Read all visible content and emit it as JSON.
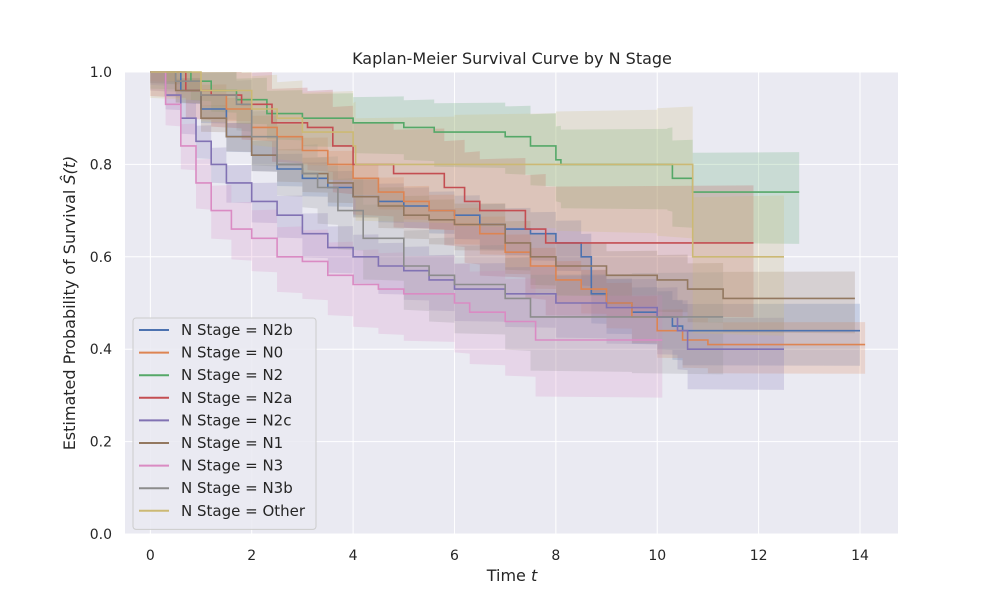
{
  "chart_data": {
    "type": "line",
    "title": "Kaplan-Meier Survival Curve by N Stage",
    "xlabel": "Time",
    "xlabel_var": "t",
    "ylabel": "Estimated Probability of Survival",
    "ylabel_var": "Ŝ(t)",
    "xlim": [
      -0.5,
      14.75
    ],
    "ylim": [
      0,
      1
    ],
    "xticks": [
      0,
      2,
      4,
      6,
      8,
      10,
      12,
      14
    ],
    "yticks": [
      0.0,
      0.2,
      0.4,
      0.6,
      0.8,
      1.0
    ],
    "xtick_labels": [
      "0",
      "2",
      "4",
      "6",
      "8",
      "10",
      "12",
      "14"
    ],
    "ytick_labels": [
      "0.0",
      "0.2",
      "0.4",
      "0.6",
      "0.8",
      "1.0"
    ],
    "grid": true,
    "legend_position": "lower-left",
    "series": [
      {
        "name": "N Stage = N2b",
        "color": "#4c72b0",
        "conf_band": 0.06,
        "points": [
          [
            0,
            1
          ],
          [
            0.3,
            1
          ],
          [
            0.6,
            0.96
          ],
          [
            1,
            0.92
          ],
          [
            1.5,
            0.86
          ],
          [
            2,
            0.82
          ],
          [
            2.5,
            0.79
          ],
          [
            3,
            0.77
          ],
          [
            3.5,
            0.75
          ],
          [
            4,
            0.73
          ],
          [
            4.5,
            0.72
          ],
          [
            5,
            0.71
          ],
          [
            5.5,
            0.7
          ],
          [
            6,
            0.69
          ],
          [
            6.5,
            0.67
          ],
          [
            7,
            0.66
          ],
          [
            7.5,
            0.65
          ],
          [
            8,
            0.63
          ],
          [
            8.5,
            0.6
          ],
          [
            8.7,
            0.52
          ],
          [
            9,
            0.5
          ],
          [
            9.5,
            0.48
          ],
          [
            10,
            0.47
          ],
          [
            10.3,
            0.45
          ],
          [
            10.5,
            0.44
          ],
          [
            14,
            0.44
          ]
        ]
      },
      {
        "name": "N Stage = N0",
        "color": "#dd8452",
        "conf_band": 0.05,
        "points": [
          [
            0,
            1
          ],
          [
            0.5,
            0.98
          ],
          [
            1,
            0.95
          ],
          [
            1.5,
            0.92
          ],
          [
            2,
            0.88
          ],
          [
            2.5,
            0.86
          ],
          [
            3,
            0.83
          ],
          [
            3.5,
            0.8
          ],
          [
            4,
            0.77
          ],
          [
            4.5,
            0.74
          ],
          [
            5,
            0.72
          ],
          [
            5.5,
            0.7
          ],
          [
            6,
            0.67
          ],
          [
            6.5,
            0.65
          ],
          [
            7,
            0.61
          ],
          [
            7.5,
            0.58
          ],
          [
            8,
            0.55
          ],
          [
            8.5,
            0.53
          ],
          [
            9,
            0.5
          ],
          [
            9.5,
            0.47
          ],
          [
            10,
            0.44
          ],
          [
            10.5,
            0.42
          ],
          [
            11,
            0.41
          ],
          [
            14.1,
            0.41
          ]
        ]
      },
      {
        "name": "N Stage = N2",
        "color": "#55a868",
        "conf_band": 0.09,
        "points": [
          [
            0,
            1
          ],
          [
            0.8,
            0.98
          ],
          [
            1.2,
            0.96
          ],
          [
            1.7,
            0.94
          ],
          [
            2.3,
            0.91
          ],
          [
            3,
            0.9
          ],
          [
            4,
            0.89
          ],
          [
            5,
            0.88
          ],
          [
            5.6,
            0.87
          ],
          [
            7,
            0.86
          ],
          [
            7.5,
            0.84
          ],
          [
            8,
            0.81
          ],
          [
            8.1,
            0.8
          ],
          [
            10.2,
            0.8
          ],
          [
            10.3,
            0.77
          ],
          [
            10.7,
            0.74
          ],
          [
            12.8,
            0.74
          ]
        ]
      },
      {
        "name": "N Stage = N2a",
        "color": "#c44e52",
        "conf_band": 0.13,
        "points": [
          [
            0,
            1
          ],
          [
            0.7,
            0.96
          ],
          [
            1.2,
            0.95
          ],
          [
            1.8,
            0.93
          ],
          [
            2.4,
            0.89
          ],
          [
            3.1,
            0.88
          ],
          [
            3.6,
            0.84
          ],
          [
            4,
            0.8
          ],
          [
            4.8,
            0.78
          ],
          [
            5.8,
            0.75
          ],
          [
            6.2,
            0.72
          ],
          [
            6.5,
            0.7
          ],
          [
            7.4,
            0.66
          ],
          [
            7.8,
            0.63
          ],
          [
            11.9,
            0.63
          ]
        ]
      },
      {
        "name": "N Stage = N2c",
        "color": "#8172b3",
        "conf_band": 0.07,
        "points": [
          [
            0,
            1
          ],
          [
            0.3,
            0.95
          ],
          [
            0.6,
            0.9
          ],
          [
            0.9,
            0.85
          ],
          [
            1.2,
            0.8
          ],
          [
            1.5,
            0.76
          ],
          [
            2,
            0.72
          ],
          [
            2.5,
            0.69
          ],
          [
            3,
            0.65
          ],
          [
            3.5,
            0.62
          ],
          [
            4,
            0.6
          ],
          [
            4.5,
            0.58
          ],
          [
            5,
            0.57
          ],
          [
            5.5,
            0.55
          ],
          [
            6,
            0.53
          ],
          [
            7,
            0.52
          ],
          [
            8,
            0.5
          ],
          [
            9,
            0.49
          ],
          [
            10,
            0.47
          ],
          [
            10.4,
            0.44
          ],
          [
            10.6,
            0.4
          ],
          [
            12.5,
            0.4
          ]
        ]
      },
      {
        "name": "N Stage = N1",
        "color": "#937860",
        "conf_band": 0.06,
        "points": [
          [
            0,
            1
          ],
          [
            0.5,
            0.96
          ],
          [
            1,
            0.9
          ],
          [
            1.5,
            0.86
          ],
          [
            2,
            0.82
          ],
          [
            2.5,
            0.8
          ],
          [
            3,
            0.78
          ],
          [
            3.5,
            0.76
          ],
          [
            4,
            0.73
          ],
          [
            4.5,
            0.71
          ],
          [
            5,
            0.69
          ],
          [
            5.5,
            0.68
          ],
          [
            6,
            0.67
          ],
          [
            7,
            0.63
          ],
          [
            7.5,
            0.6
          ],
          [
            8,
            0.58
          ],
          [
            9,
            0.56
          ],
          [
            10,
            0.55
          ],
          [
            10.6,
            0.53
          ],
          [
            11.3,
            0.51
          ],
          [
            13.9,
            0.51
          ]
        ]
      },
      {
        "name": "N Stage = N3",
        "color": "#da8bc3",
        "conf_band": 0.1,
        "points": [
          [
            0,
            1
          ],
          [
            0.3,
            0.93
          ],
          [
            0.6,
            0.84
          ],
          [
            0.9,
            0.76
          ],
          [
            1.2,
            0.7
          ],
          [
            1.6,
            0.66
          ],
          [
            2,
            0.64
          ],
          [
            2.5,
            0.6
          ],
          [
            3,
            0.59
          ],
          [
            3.5,
            0.56
          ],
          [
            4,
            0.54
          ],
          [
            4.5,
            0.53
          ],
          [
            5,
            0.52
          ],
          [
            6,
            0.5
          ],
          [
            6.3,
            0.48
          ],
          [
            7,
            0.46
          ],
          [
            7.6,
            0.42
          ],
          [
            10.1,
            0.42
          ]
        ]
      },
      {
        "name": "N Stage = N3b",
        "color": "#8c8c8c",
        "conf_band": 0.1,
        "points": [
          [
            0,
            1
          ],
          [
            0.5,
            0.98
          ],
          [
            1,
            0.95
          ],
          [
            1.7,
            0.93
          ],
          [
            2,
            0.86
          ],
          [
            2.5,
            0.8
          ],
          [
            3,
            0.78
          ],
          [
            3.3,
            0.75
          ],
          [
            3.7,
            0.7
          ],
          [
            4.2,
            0.64
          ],
          [
            5,
            0.58
          ],
          [
            5.5,
            0.56
          ],
          [
            6,
            0.54
          ],
          [
            7,
            0.51
          ],
          [
            7.5,
            0.47
          ],
          [
            9.5,
            0.47
          ],
          [
            11.3,
            0.47
          ]
        ]
      },
      {
        "name": "N Stage = Other",
        "color": "#ccb974",
        "conf_band": 0.14,
        "points": [
          [
            0,
            1
          ],
          [
            1,
            0.96
          ],
          [
            2,
            0.92
          ],
          [
            2.5,
            0.9
          ],
          [
            3,
            0.87
          ],
          [
            4,
            0.84
          ],
          [
            4.05,
            0.8
          ],
          [
            6,
            0.8
          ],
          [
            8,
            0.8
          ],
          [
            10,
            0.8
          ],
          [
            10.7,
            0.6
          ],
          [
            12.5,
            0.6
          ]
        ]
      }
    ]
  }
}
